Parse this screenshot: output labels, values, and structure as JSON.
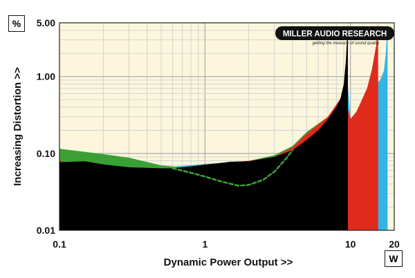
{
  "chart_data": {
    "type": "area",
    "title": "",
    "xlabel": "Dynamic Power Output >>",
    "ylabel": "Increasing Distortion >>",
    "x_unit": "W",
    "y_unit": "%",
    "x_scale": "log",
    "y_scale": "log",
    "xlim": [
      0.1,
      20
    ],
    "ylim": [
      0.01,
      5
    ],
    "x_ticks": [
      {
        "value": 0.1,
        "label": "0.1"
      },
      {
        "value": 1,
        "label": "1"
      },
      {
        "value": 10,
        "label": "10"
      },
      {
        "value": 20,
        "label": "20"
      }
    ],
    "y_ticks": [
      {
        "value": 0.01,
        "label": "0.01"
      },
      {
        "value": 0.1,
        "label": "0.10"
      },
      {
        "value": 1,
        "label": "1.00"
      },
      {
        "value": 5,
        "label": "5.00"
      }
    ],
    "grid": true,
    "series": [
      {
        "color": "#34b4e4",
        "style": "area",
        "points": [
          [
            0.1,
            0.088
          ],
          [
            0.2,
            0.075
          ],
          [
            0.3,
            0.07
          ],
          [
            0.5,
            0.065
          ],
          [
            1,
            0.073
          ],
          [
            2,
            0.079
          ],
          [
            3,
            0.09
          ],
          [
            4,
            0.12
          ],
          [
            5,
            0.18
          ],
          [
            7,
            0.3
          ],
          [
            9,
            0.6
          ],
          [
            9.5,
            1.0
          ],
          [
            10,
            0.28
          ],
          [
            12,
            0.4
          ],
          [
            14,
            0.7
          ],
          [
            16,
            0.9
          ],
          [
            17,
            1.2
          ],
          [
            17.5,
            2.0
          ],
          [
            18,
            5.0
          ]
        ]
      },
      {
        "color": "#3aa035",
        "style": "area",
        "points": [
          [
            0.1,
            0.115
          ],
          [
            0.2,
            0.098
          ],
          [
            0.3,
            0.088
          ],
          [
            0.5,
            0.07
          ],
          [
            0.7,
            0.066
          ],
          [
            1,
            0.072
          ],
          [
            2,
            0.08
          ],
          [
            3,
            0.095
          ],
          [
            4,
            0.125
          ],
          [
            5,
            0.19
          ],
          [
            7,
            0.3
          ],
          [
            9,
            0.55
          ]
        ]
      },
      {
        "color": "#e02a1c",
        "style": "area",
        "points": [
          [
            0.1,
            0.08
          ],
          [
            0.15,
            0.07
          ],
          [
            0.2,
            0.055
          ],
          [
            0.3,
            0.045
          ],
          [
            0.4,
            0.046
          ],
          [
            0.5,
            0.05
          ],
          [
            0.7,
            0.062
          ],
          [
            1,
            0.072
          ],
          [
            2,
            0.08
          ],
          [
            3,
            0.09
          ],
          [
            4,
            0.12
          ],
          [
            5,
            0.18
          ],
          [
            7,
            0.3
          ],
          [
            9,
            0.6
          ],
          [
            10,
            0.28
          ],
          [
            11,
            0.35
          ],
          [
            12,
            0.5
          ],
          [
            13,
            0.7
          ],
          [
            14,
            1.2
          ],
          [
            15,
            2.5
          ],
          [
            15.5,
            5.0
          ]
        ]
      },
      {
        "color": "#000000",
        "style": "area",
        "points": [
          [
            0.1,
            0.077
          ],
          [
            0.15,
            0.079
          ],
          [
            0.2,
            0.072
          ],
          [
            0.3,
            0.066
          ],
          [
            0.5,
            0.064
          ],
          [
            0.6,
            0.064
          ],
          [
            1,
            0.071
          ],
          [
            1.5,
            0.078
          ],
          [
            2,
            0.079
          ],
          [
            3,
            0.09
          ],
          [
            4,
            0.11
          ],
          [
            5,
            0.15
          ],
          [
            6,
            0.2
          ],
          [
            7,
            0.28
          ],
          [
            8,
            0.4
          ],
          [
            8.5,
            0.5
          ],
          [
            9,
            0.8
          ],
          [
            9.3,
            1.6
          ],
          [
            9.6,
            5.0
          ]
        ]
      },
      {
        "color": "#3aa035",
        "style": "dashed-line",
        "points": [
          [
            0.6,
            0.064
          ],
          [
            0.8,
            0.056
          ],
          [
            1,
            0.05
          ],
          [
            1.3,
            0.043
          ],
          [
            1.7,
            0.038
          ],
          [
            2,
            0.039
          ],
          [
            2.5,
            0.045
          ],
          [
            3,
            0.058
          ],
          [
            3.5,
            0.08
          ],
          [
            4,
            0.11
          ]
        ]
      }
    ]
  },
  "logo": {
    "brand": "MILLER AUDIO RESEARCH",
    "tagline": "getting the measure of sound quality"
  }
}
